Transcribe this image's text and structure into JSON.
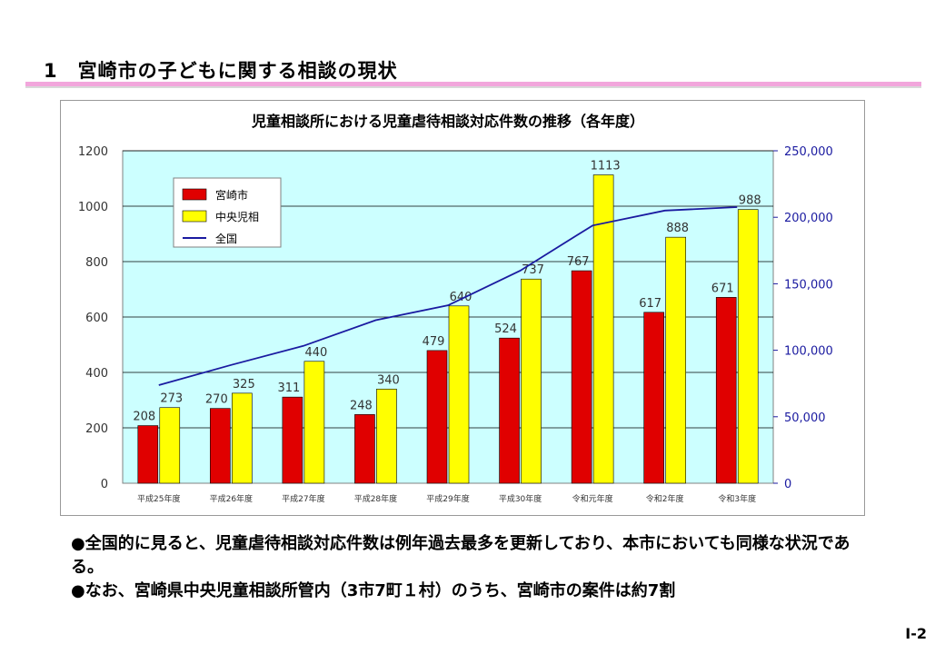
{
  "slide": {
    "title": "1　宮崎市の子どもに関する相談の現状",
    "bullets": [
      "●全国的に見ると、児童虐待相談対応件数は例年過去最多を更新しており、本市においても同様な状況である。",
      "●なお、宮崎県中央児童相談所管内（3市7町１村）のうち、宮崎市の案件は約7割"
    ],
    "page_number": "Ⅰ-2"
  },
  "chart_data": {
    "type": "bar",
    "title": "児童相談所における児童虐待相談対応件数の推移（各年度）",
    "categories": [
      "平成25年度",
      "平成26年度",
      "平成27年度",
      "平成28年度",
      "平成29年度",
      "平成30年度",
      "令和元年度",
      "令和2年度",
      "令和3年度"
    ],
    "series": [
      {
        "name": "宮崎市",
        "type": "bar",
        "color": "#e00000",
        "values": [
          208,
          270,
          311,
          248,
          479,
          524,
          767,
          617,
          671
        ]
      },
      {
        "name": "中央児相",
        "type": "bar",
        "color": "#ffff00",
        "values": [
          273,
          325,
          440,
          340,
          640,
          737,
          1113,
          888,
          988
        ]
      },
      {
        "name": "全国",
        "type": "line",
        "axis": "right",
        "color": "#1a1aa0",
        "values": [
          73802,
          88931,
          103286,
          122575,
          133778,
          159838,
          193780,
          205044,
          207660
        ]
      }
    ],
    "ylim": [
      0,
      1200
    ],
    "yticks": [
      "0",
      "200",
      "400",
      "600",
      "800",
      "1000",
      "1200"
    ],
    "y2lim": [
      0,
      250000
    ],
    "y2ticks": [
      "0",
      "50,000",
      "100,000",
      "150,000",
      "200,000",
      "250,000"
    ],
    "legend": "top-left",
    "grid": true,
    "plot_background": "#ccffff"
  }
}
